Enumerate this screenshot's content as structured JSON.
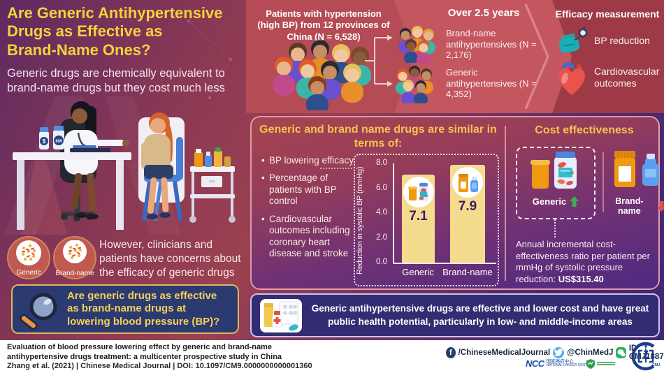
{
  "colors": {
    "title_yellow": "#f2d23c",
    "gold_heading": "#f6c44e",
    "bar_fill": "#f5db8e",
    "value_purple": "#3a1d63",
    "up_green": "#3fae4f",
    "down_red": "#e0514d",
    "banner_navy": "#322d72",
    "band_red": "#9d3a45",
    "twitter_blue": "#55acee",
    "wechat_green": "#28b35e",
    "facebook_navy": "#27406b"
  },
  "left": {
    "title": "Are Generic Antihypertensive\nDrugs as Effective as\nBrand-Name Ones?",
    "subtitle": "Generic drugs are chemically equivalent to brand-name drugs but they cost much less",
    "concern": "However, clinicians and patients have concerns about the efficacy of generic drugs",
    "badges": [
      {
        "label": "Generic"
      },
      {
        "label": "Brand-name"
      }
    ],
    "question": "Are generic drugs as effective\nas brand-name drugs at\nlowering blood pressure (BP)?"
  },
  "top_band": {
    "patients": "Patients with hypertension\n(high BP) from 12 provinces of\nChina (N = 6,528)",
    "duration": "Over 2.5 years",
    "groups": [
      {
        "label": "Brand-name antihypertensives (N = 2,176)"
      },
      {
        "label": "Generic antihypertensives (N = 4,352)"
      }
    ],
    "efficacy": {
      "title": "Efficacy measurement",
      "items": [
        "BP reduction",
        "Cardiovascular outcomes"
      ]
    }
  },
  "similar_panel": {
    "heading": "Generic and brand name drugs are similar in\nterms of:",
    "bullets": [
      "BP lowering efficacy",
      "Percentage of patients with BP control",
      "Cardiovascular outcomes including coronary heart disease and stroke"
    ]
  },
  "chart_data": {
    "type": "bar",
    "categories": [
      "Generic",
      "Brand-name"
    ],
    "values": [
      7.1,
      7.9
    ],
    "value_labels": [
      "7.1",
      "7.9"
    ],
    "title": "",
    "xlabel": "",
    "ylabel": "Reduction in systolic BP (mmHg)",
    "ylim": [
      0,
      8
    ],
    "ytick_labels": [
      "0.0",
      "2.0",
      "4.0",
      "6.0",
      "8.0"
    ],
    "grid": false,
    "legend": false,
    "bar_color": "#f5db8e"
  },
  "cost_panel": {
    "heading": "Cost effectiveness",
    "generic_label": "Generic",
    "brand_label": "Brand-name",
    "note_prefix": "Annual incremental cost-effectiveness ratio per patient per mmHg of systolic pressure reduction: ",
    "note_value": "US$315.40"
  },
  "conclusion": "Generic antihypertensive drugs are effective and lower cost and have great public health potential, particularly in low- and middle-income areas",
  "footer": {
    "citation_title": "Evaluation of blood pressure lowering effect by generic and brand-name antihypertensive drugs treatment: a multicenter prospective study in China",
    "citation_meta": "Zhang et al. (2021)   |   Chinese Medical Journal   |   DOI: 10.1097/CM9.0000000000001360",
    "facebook_handle": "/ChineseMedicalJournal",
    "twitter_handle": "@ChinMedJ",
    "wechat_id": "ID CMJ1887",
    "ncc": {
      "abbr": "NCC",
      "cn": "国家癌症中心",
      "en": "NATIONAL CANCER CENTER"
    },
    "cmj_logo_text": "CMJ"
  },
  "icons": {
    "bp-cuff-icon": "teal blood-pressure cuff with gauge",
    "heart-icon": "anatomical heart with vessels",
    "magnifier-icon": "magnifying glass",
    "pill-bottle-icons": "orange and blue medicine bottles",
    "up-arrow-icon": "green up arrow",
    "down-arrow-icon": "red down arrow",
    "facebook-icon": "f in circle",
    "twitter-icon": "bird in circle",
    "wechat-icon": "chat bubbles in green square",
    "first-aid-icon": "bottles, cross bottle and blister pack",
    "crowd-icons": "groups of patients"
  }
}
